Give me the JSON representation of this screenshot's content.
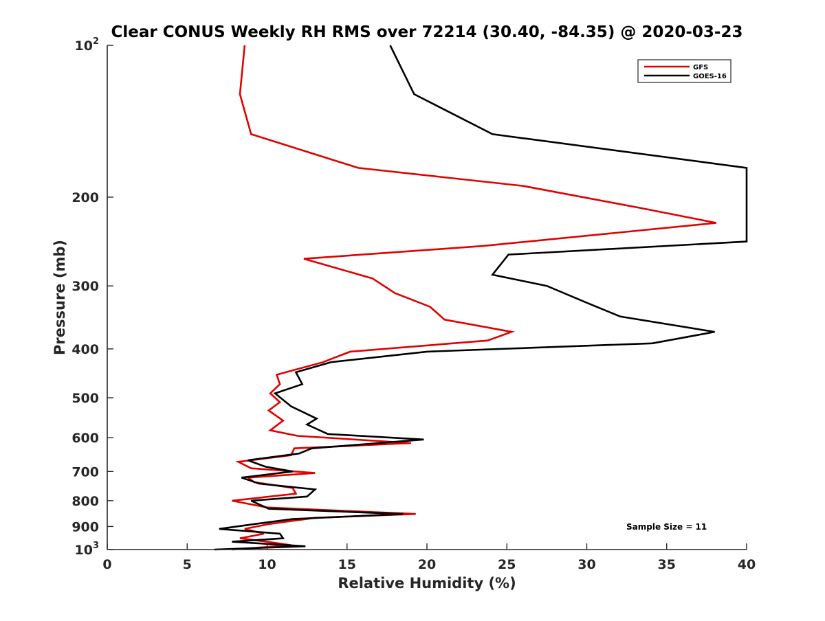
{
  "chart_data": {
    "type": "line",
    "title": "Clear CONUS Weekly RH RMS over 72214 (30.40, -84.35) @ 2020-03-23",
    "xlabel": "Relative Humidity (%)",
    "ylabel": "Pressure (mb)",
    "xlim": [
      0,
      40
    ],
    "ylim": [
      100,
      1000
    ],
    "y_scale": "log",
    "y_reversed": true,
    "x_ticks": [
      0,
      5,
      10,
      15,
      20,
      25,
      30,
      35,
      40
    ],
    "x_tick_labels": [
      "0",
      "5",
      "10",
      "15",
      "20",
      "25",
      "30",
      "35",
      "40"
    ],
    "y_ticks": [
      100,
      200,
      300,
      400,
      500,
      600,
      700,
      800,
      900,
      1000
    ],
    "y_tick_labels": [
      {
        "base": "10",
        "sup": "2"
      },
      {
        "base": "200",
        "sup": ""
      },
      {
        "base": "300",
        "sup": ""
      },
      {
        "base": "400",
        "sup": ""
      },
      {
        "base": "500",
        "sup": ""
      },
      {
        "base": "600",
        "sup": ""
      },
      {
        "base": "700",
        "sup": ""
      },
      {
        "base": "800",
        "sup": ""
      },
      {
        "base": "900",
        "sup": ""
      },
      {
        "base": "10",
        "sup": "3"
      }
    ],
    "grid": false,
    "legend": {
      "placement": "top-right"
    },
    "annotation": "Sample Size = 11",
    "series": [
      {
        "name": "GFS",
        "color": "#e00000",
        "points": [
          [
            8.6,
            100
          ],
          [
            8.3,
            125
          ],
          [
            9.0,
            150
          ],
          [
            15.7,
            175
          ],
          [
            26.0,
            190
          ],
          [
            33.3,
            210
          ],
          [
            38.1,
            225
          ],
          [
            23.5,
            250
          ],
          [
            12.3,
            265
          ],
          [
            16.6,
            290
          ],
          [
            18.0,
            310
          ],
          [
            20.2,
            330
          ],
          [
            21.1,
            350
          ],
          [
            25.3,
            370
          ],
          [
            23.8,
            385
          ],
          [
            15.2,
            405
          ],
          [
            13.5,
            425
          ],
          [
            10.6,
            450
          ],
          [
            10.8,
            470
          ],
          [
            10.2,
            490
          ],
          [
            10.8,
            510
          ],
          [
            10.1,
            530
          ],
          [
            11.0,
            555
          ],
          [
            10.2,
            580
          ],
          [
            11.9,
            595
          ],
          [
            19.0,
            615
          ],
          [
            11.7,
            630
          ],
          [
            11.5,
            650
          ],
          [
            8.2,
            670
          ],
          [
            9.0,
            690
          ],
          [
            13.0,
            705
          ],
          [
            8.8,
            720
          ],
          [
            9.2,
            735
          ],
          [
            11.6,
            755
          ],
          [
            11.8,
            775
          ],
          [
            7.8,
            800
          ],
          [
            10.0,
            825
          ],
          [
            19.3,
            850
          ],
          [
            13.0,
            865
          ],
          [
            10.1,
            890
          ],
          [
            8.6,
            910
          ],
          [
            9.8,
            930
          ],
          [
            8.3,
            950
          ],
          [
            10.0,
            965
          ],
          [
            11.5,
            980
          ],
          [
            7.8,
            1000
          ]
        ]
      },
      {
        "name": "GOES-16",
        "color": "#000000",
        "points": [
          [
            17.7,
            100
          ],
          [
            19.2,
            125
          ],
          [
            24.1,
            150
          ],
          [
            40.0,
            175
          ],
          [
            40.0,
            245
          ],
          [
            25.1,
            260
          ],
          [
            24.1,
            285
          ],
          [
            27.5,
            300
          ],
          [
            30.1,
            325
          ],
          [
            32.1,
            345
          ],
          [
            38.0,
            370
          ],
          [
            34.1,
            390
          ],
          [
            20.0,
            405
          ],
          [
            14.0,
            425
          ],
          [
            11.8,
            445
          ],
          [
            12.2,
            470
          ],
          [
            10.5,
            490
          ],
          [
            11.5,
            520
          ],
          [
            13.1,
            550
          ],
          [
            12.5,
            565
          ],
          [
            13.8,
            590
          ],
          [
            19.8,
            605
          ],
          [
            12.8,
            630
          ],
          [
            12.0,
            645
          ],
          [
            8.8,
            665
          ],
          [
            9.9,
            685
          ],
          [
            11.6,
            700
          ],
          [
            8.4,
            720
          ],
          [
            9.5,
            740
          ],
          [
            13.0,
            760
          ],
          [
            12.5,
            785
          ],
          [
            9.0,
            800
          ],
          [
            10.1,
            830
          ],
          [
            18.5,
            850
          ],
          [
            11.6,
            870
          ],
          [
            9.2,
            890
          ],
          [
            7.0,
            910
          ],
          [
            10.8,
            930
          ],
          [
            11.0,
            950
          ],
          [
            7.8,
            965
          ],
          [
            12.4,
            985
          ],
          [
            6.7,
            1000
          ]
        ]
      }
    ]
  }
}
